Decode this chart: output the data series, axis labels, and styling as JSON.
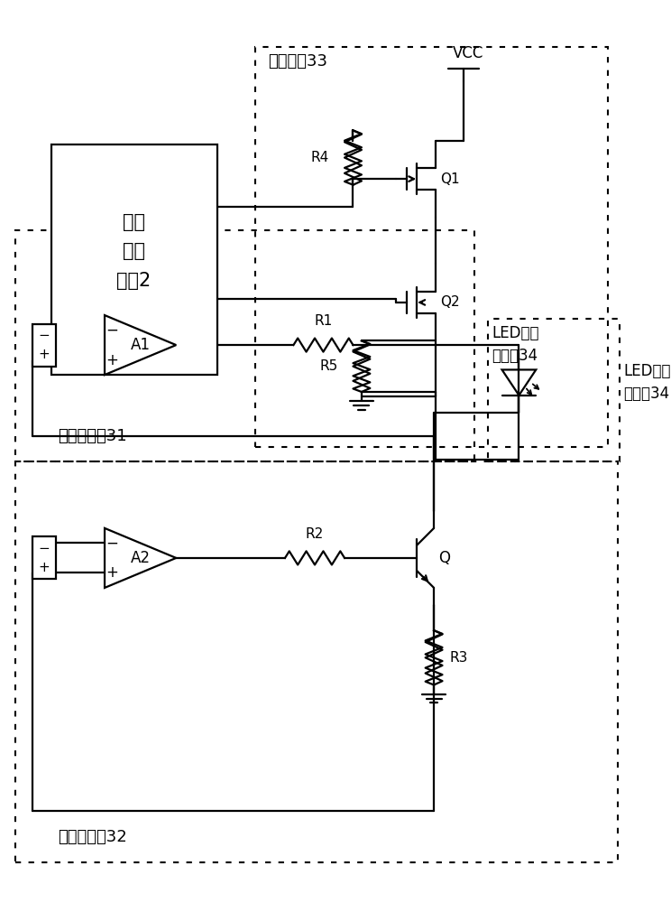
{
  "bg_color": "#ffffff",
  "line_color": "#000000",
  "labels": {
    "vcc": "VCC",
    "r1": "R1",
    "r2": "R2",
    "r3": "R3",
    "r4": "R4",
    "r5": "R5",
    "q1": "Q1",
    "q2": "Q2",
    "q": "Q",
    "a1": "A1",
    "a2": "A2",
    "micro": "微处\n理器\n模块2",
    "block33": "可控开关33",
    "block31": "可控电压源31",
    "block32": "可控恒流源32",
    "led_label": "LED老化\n测试座34"
  },
  "fonts": {
    "label": 12,
    "block": 13,
    "small": 11
  }
}
